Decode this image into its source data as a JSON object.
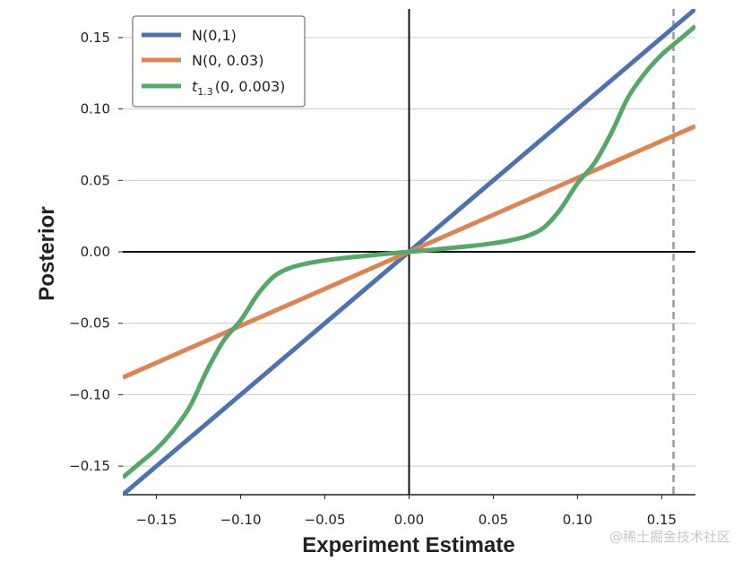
{
  "chart_data": {
    "type": "line",
    "xlabel": "Experiment Estimate",
    "ylabel": "Posterior",
    "xlim": [
      -0.17,
      0.17
    ],
    "ylim": [
      -0.17,
      0.17
    ],
    "grid": "horizontal",
    "legend_position": "top-left",
    "x_ticks": [
      -0.15,
      -0.1,
      -0.05,
      0.0,
      0.05,
      0.1,
      0.15
    ],
    "x_tick_labels": [
      "−0.15",
      "−0.10",
      "−0.05",
      "0.00",
      "0.05",
      "0.10",
      "0.15"
    ],
    "y_ticks": [
      0.15,
      0.1,
      0.05,
      0.0,
      -0.05,
      -0.1,
      -0.15
    ],
    "y_tick_labels": [
      "0.15",
      "0.10",
      "0.05",
      "0.00",
      "−0.05",
      "−0.10",
      "−0.15"
    ],
    "reference_line_x": 0.157,
    "series": [
      {
        "name": "N(0,1)",
        "color": "#4c72b0",
        "x": [
          -0.17,
          0.17
        ],
        "y": [
          -0.17,
          0.17
        ]
      },
      {
        "name": "N(0, 0.03)",
        "color": "#dd8452",
        "x": [
          -0.17,
          0.17
        ],
        "y": [
          -0.088,
          0.088
        ]
      },
      {
        "name": "t",
        "name_subscript": "1.3",
        "name_suffix": "(0, 0.003)",
        "color": "#55a868",
        "x": [
          -0.17,
          -0.16,
          -0.15,
          -0.14,
          -0.13,
          -0.12,
          -0.11,
          -0.1,
          -0.09,
          -0.08,
          -0.07,
          -0.06,
          -0.05,
          -0.04,
          -0.03,
          -0.02,
          -0.01,
          0.0,
          0.01,
          0.02,
          0.03,
          0.04,
          0.05,
          0.06,
          0.07,
          0.08,
          0.09,
          0.1,
          0.11,
          0.12,
          0.13,
          0.14,
          0.15,
          0.16,
          0.17
        ],
        "y": [
          -0.158,
          -0.148,
          -0.138,
          -0.125,
          -0.108,
          -0.083,
          -0.062,
          -0.048,
          -0.03,
          -0.017,
          -0.011,
          -0.008,
          -0.006,
          -0.0045,
          -0.0033,
          -0.0021,
          -0.001,
          0.0,
          0.001,
          0.0021,
          0.0033,
          0.0045,
          0.006,
          0.008,
          0.011,
          0.017,
          0.03,
          0.048,
          0.062,
          0.083,
          0.108,
          0.125,
          0.138,
          0.148,
          0.158
        ]
      }
    ]
  },
  "watermark": "@稀土掘金技术社区"
}
